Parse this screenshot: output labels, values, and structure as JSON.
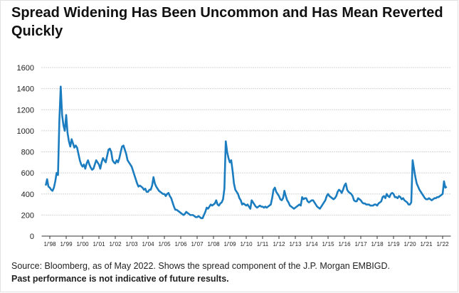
{
  "chart_data": {
    "type": "line",
    "title": [
      "Spread Widening Has Been Uncommon and Has Mean Reverted",
      "Quickly"
    ],
    "source": "Source: Bloomberg, as of May 2022. Shows the spread component of the J.P. Morgan EMBIGD.",
    "disclaimer": "Past performance is not indicative of future results.",
    "ylim": [
      0,
      1600
    ],
    "yticks": [
      0,
      200,
      400,
      600,
      800,
      1000,
      1200,
      1400,
      1600
    ],
    "grid": true,
    "xlim": [
      "1997-07",
      "2022-07"
    ],
    "xticks": [
      {
        "value": "1998-01",
        "label": "1/'98"
      },
      {
        "value": "1999-01",
        "label": "1/'99"
      },
      {
        "value": "2000-01",
        "label": "1/'00"
      },
      {
        "value": "2001-01",
        "label": "1/'01"
      },
      {
        "value": "2002-01",
        "label": "1/'02"
      },
      {
        "value": "2003-01",
        "label": "1/'03"
      },
      {
        "value": "2004-01",
        "label": "1/'04"
      },
      {
        "value": "2005-01",
        "label": "1/'05"
      },
      {
        "value": "2006-01",
        "label": "1/'06"
      },
      {
        "value": "2007-01",
        "label": "1/'07"
      },
      {
        "value": "2008-01",
        "label": "1/'08"
      },
      {
        "value": "2009-01",
        "label": "1/'09"
      },
      {
        "value": "2010-01",
        "label": "1/'10"
      },
      {
        "value": "2011-01",
        "label": "1/'11"
      },
      {
        "value": "2012-01",
        "label": "1/'12"
      },
      {
        "value": "2013-01",
        "label": "1/'13"
      },
      {
        "value": "2014-01",
        "label": "1/'14"
      },
      {
        "value": "2015-01",
        "label": "1/'15"
      },
      {
        "value": "2016-01",
        "label": "1/'16"
      },
      {
        "value": "2017-01",
        "label": "1/'17"
      },
      {
        "value": "2018-01",
        "label": "1/'18"
      },
      {
        "value": "2019-01",
        "label": "1/'19"
      },
      {
        "value": "2020-01",
        "label": "1/'20"
      },
      {
        "value": "2021-01",
        "label": "1/'21"
      },
      {
        "value": "2022-01",
        "label": "1/'22"
      }
    ],
    "x": [
      "1997-10",
      "1997-11",
      "1997-12",
      "1998-01",
      "1998-02",
      "1998-03",
      "1998-04",
      "1998-05",
      "1998-06",
      "1998-07",
      "1998-08",
      "1998-09",
      "1998-10",
      "1998-11",
      "1998-12",
      "1999-01",
      "1999-02",
      "1999-03",
      "1999-04",
      "1999-05",
      "1999-06",
      "1999-07",
      "1999-08",
      "1999-09",
      "1999-10",
      "1999-11",
      "1999-12",
      "2000-01",
      "2000-02",
      "2000-03",
      "2000-04",
      "2000-05",
      "2000-06",
      "2000-07",
      "2000-08",
      "2000-09",
      "2000-10",
      "2000-11",
      "2000-12",
      "2001-01",
      "2001-02",
      "2001-03",
      "2001-04",
      "2001-05",
      "2001-06",
      "2001-07",
      "2001-08",
      "2001-09",
      "2001-10",
      "2001-11",
      "2001-12",
      "2002-01",
      "2002-02",
      "2002-03",
      "2002-04",
      "2002-05",
      "2002-06",
      "2002-07",
      "2002-08",
      "2002-09",
      "2002-10",
      "2002-11",
      "2002-12",
      "2003-01",
      "2003-02",
      "2003-03",
      "2003-04",
      "2003-05",
      "2003-06",
      "2003-07",
      "2003-08",
      "2003-09",
      "2003-10",
      "2003-11",
      "2003-12",
      "2004-01",
      "2004-02",
      "2004-03",
      "2004-04",
      "2004-05",
      "2004-06",
      "2004-07",
      "2004-08",
      "2004-09",
      "2004-10",
      "2004-11",
      "2004-12",
      "2005-01",
      "2005-02",
      "2005-03",
      "2005-04",
      "2005-05",
      "2005-06",
      "2005-07",
      "2005-08",
      "2005-09",
      "2005-10",
      "2005-11",
      "2005-12",
      "2006-01",
      "2006-02",
      "2006-03",
      "2006-04",
      "2006-05",
      "2006-06",
      "2006-07",
      "2006-08",
      "2006-09",
      "2006-10",
      "2006-11",
      "2006-12",
      "2007-01",
      "2007-02",
      "2007-03",
      "2007-04",
      "2007-05",
      "2007-06",
      "2007-07",
      "2007-08",
      "2007-09",
      "2007-10",
      "2007-11",
      "2007-12",
      "2008-01",
      "2008-02",
      "2008-03",
      "2008-04",
      "2008-05",
      "2008-06",
      "2008-07",
      "2008-08",
      "2008-09",
      "2008-10",
      "2008-11",
      "2008-12",
      "2009-01",
      "2009-02",
      "2009-03",
      "2009-04",
      "2009-05",
      "2009-06",
      "2009-07",
      "2009-08",
      "2009-09",
      "2009-10",
      "2009-11",
      "2009-12",
      "2010-01",
      "2010-02",
      "2010-03",
      "2010-04",
      "2010-05",
      "2010-06",
      "2010-07",
      "2010-08",
      "2010-09",
      "2010-10",
      "2010-11",
      "2010-12",
      "2011-01",
      "2011-02",
      "2011-03",
      "2011-04",
      "2011-05",
      "2011-06",
      "2011-07",
      "2011-08",
      "2011-09",
      "2011-10",
      "2011-11",
      "2011-12",
      "2012-01",
      "2012-02",
      "2012-03",
      "2012-04",
      "2012-05",
      "2012-06",
      "2012-07",
      "2012-08",
      "2012-09",
      "2012-10",
      "2012-11",
      "2012-12",
      "2013-01",
      "2013-02",
      "2013-03",
      "2013-04",
      "2013-05",
      "2013-06",
      "2013-07",
      "2013-08",
      "2013-09",
      "2013-10",
      "2013-11",
      "2013-12",
      "2014-01",
      "2014-02",
      "2014-03",
      "2014-04",
      "2014-05",
      "2014-06",
      "2014-07",
      "2014-08",
      "2014-09",
      "2014-10",
      "2014-11",
      "2014-12",
      "2015-01",
      "2015-02",
      "2015-03",
      "2015-04",
      "2015-05",
      "2015-06",
      "2015-07",
      "2015-08",
      "2015-09",
      "2015-10",
      "2015-11",
      "2015-12",
      "2016-01",
      "2016-02",
      "2016-03",
      "2016-04",
      "2016-05",
      "2016-06",
      "2016-07",
      "2016-08",
      "2016-09",
      "2016-10",
      "2016-11",
      "2016-12",
      "2017-01",
      "2017-02",
      "2017-03",
      "2017-04",
      "2017-05",
      "2017-06",
      "2017-07",
      "2017-08",
      "2017-09",
      "2017-10",
      "2017-11",
      "2017-12",
      "2018-01",
      "2018-02",
      "2018-03",
      "2018-04",
      "2018-05",
      "2018-06",
      "2018-07",
      "2018-08",
      "2018-09",
      "2018-10",
      "2018-11",
      "2018-12",
      "2019-01",
      "2019-02",
      "2019-03",
      "2019-04",
      "2019-05",
      "2019-06",
      "2019-07",
      "2019-08",
      "2019-09",
      "2019-10",
      "2019-11",
      "2019-12",
      "2020-01",
      "2020-02",
      "2020-03",
      "2020-04",
      "2020-05",
      "2020-06",
      "2020-07",
      "2020-08",
      "2020-09",
      "2020-10",
      "2020-11",
      "2020-12",
      "2021-01",
      "2021-02",
      "2021-03",
      "2021-04",
      "2021-05",
      "2021-06",
      "2021-07",
      "2021-08",
      "2021-09",
      "2021-10",
      "2021-11",
      "2021-12",
      "2022-01",
      "2022-02",
      "2022-03",
      "2022-04"
    ],
    "series": [
      {
        "name": "Spread",
        "color": "#1b7dc0",
        "values": [
          480,
          540,
          470,
          460,
          440,
          430,
          460,
          520,
          600,
          580,
          1100,
          1420,
          1150,
          1050,
          1000,
          1150,
          980,
          900,
          850,
          920,
          880,
          840,
          860,
          840,
          780,
          720,
          680,
          660,
          680,
          640,
          690,
          720,
          680,
          650,
          630,
          640,
          680,
          720,
          700,
          680,
          640,
          700,
          740,
          720,
          700,
          760,
          820,
          830,
          800,
          720,
          700,
          690,
          720,
          700,
          740,
          800,
          850,
          860,
          820,
          780,
          720,
          700,
          680,
          660,
          620,
          580,
          540,
          500,
          470,
          480,
          470,
          460,
          440,
          450,
          420,
          420,
          440,
          440,
          480,
          560,
          500,
          470,
          450,
          430,
          420,
          410,
          400,
          400,
          380,
          400,
          410,
          380,
          360,
          320,
          280,
          250,
          250,
          240,
          230,
          220,
          210,
          200,
          210,
          230,
          220,
          210,
          200,
          200,
          200,
          190,
          180,
          180,
          190,
          180,
          170,
          170,
          200,
          230,
          270,
          260,
          280,
          300,
          290,
          300,
          310,
          340,
          300,
          290,
          310,
          320,
          350,
          450,
          900,
          800,
          740,
          700,
          720,
          620,
          500,
          440,
          420,
          400,
          360,
          340,
          300,
          310,
          300,
          290,
          300,
          280,
          260,
          340,
          320,
          300,
          280,
          270,
          280,
          290,
          280,
          280,
          270,
          280,
          270,
          280,
          290,
          300,
          360,
          440,
          460,
          420,
          400,
          380,
          350,
          340,
          360,
          430,
          380,
          340,
          320,
          290,
          280,
          270,
          260,
          270,
          280,
          290,
          300,
          290,
          370,
          350,
          360,
          360,
          330,
          320,
          330,
          340,
          340,
          320,
          300,
          280,
          270,
          260,
          280,
          300,
          320,
          340,
          380,
          400,
          380,
          370,
          360,
          350,
          360,
          380,
          420,
          440,
          430,
          410,
          440,
          480,
          500,
          440,
          420,
          410,
          400,
          380,
          340,
          330,
          330,
          360,
          350,
          340,
          320,
          310,
          310,
          300,
          300,
          300,
          290,
          290,
          290,
          300,
          300,
          290,
          310,
          320,
          330,
          370,
          380,
          360,
          400,
          380,
          370,
          400,
          410,
          400,
          370,
          370,
          360,
          380,
          370,
          350,
          360,
          340,
          330,
          320,
          300,
          300,
          320,
          720,
          640,
          560,
          500,
          470,
          440,
          420,
          400,
          380,
          360,
          350,
          350,
          360,
          350,
          340,
          350,
          360,
          360,
          370,
          370,
          380,
          390,
          400,
          520,
          460,
          470
        ]
      }
    ]
  }
}
